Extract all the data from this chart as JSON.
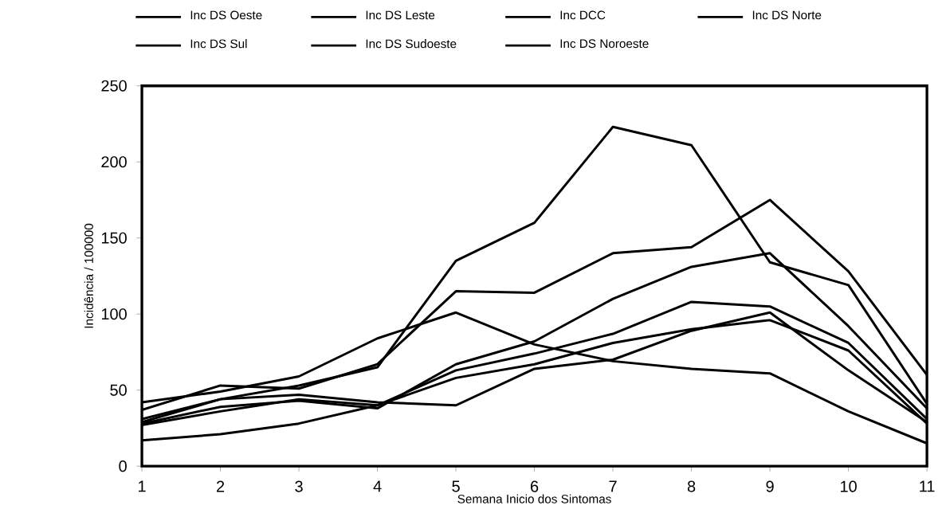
{
  "chart_data": {
    "type": "line",
    "xlabel": "Semana Inicio dos Sintomas",
    "ylabel": "Incidência / 100000",
    "x": [
      1,
      2,
      3,
      4,
      5,
      6,
      7,
      8,
      9,
      10,
      11
    ],
    "series": [
      {
        "name": "Inc DS Oeste",
        "color": "#000000",
        "values": [
          29,
          44,
          53,
          65,
          135,
          160,
          223,
          211,
          134,
          119,
          41
        ]
      },
      {
        "name": "Inc DS Leste",
        "color": "#000000",
        "values": [
          37,
          53,
          51,
          67,
          115,
          114,
          140,
          144,
          175,
          128,
          60
        ]
      },
      {
        "name": "Inc DCC",
        "color": "#000000",
        "values": [
          42,
          49,
          59,
          84,
          101,
          80,
          69,
          64,
          61,
          36,
          15
        ]
      },
      {
        "name": "Inc DS Norte",
        "color": "#000000",
        "values": [
          28,
          39,
          43,
          38,
          67,
          82,
          110,
          131,
          140,
          92,
          38
        ]
      },
      {
        "name": "Inc DS Sul",
        "color": "#000000",
        "values": [
          27,
          36,
          44,
          40,
          63,
          74,
          87,
          108,
          105,
          81,
          31
        ]
      },
      {
        "name": "Inc DS Sudoeste",
        "color": "#000000",
        "values": [
          17,
          21,
          28,
          40,
          58,
          67,
          81,
          90,
          96,
          76,
          28
        ]
      },
      {
        "name": "Inc DS Noroeste",
        "color": "#000000",
        "values": [
          31,
          44,
          47,
          42,
          40,
          64,
          70,
          89,
          101,
          63,
          29
        ]
      }
    ],
    "xlim": [
      1,
      11
    ],
    "ylim": [
      0,
      250
    ],
    "xticks": [
      1,
      2,
      3,
      4,
      5,
      6,
      7,
      8,
      9,
      10,
      11
    ],
    "yticks": [
      0,
      50,
      100,
      150,
      200,
      250
    ],
    "grid": false,
    "legend": "top",
    "marker": "none",
    "line_style": "solid"
  }
}
